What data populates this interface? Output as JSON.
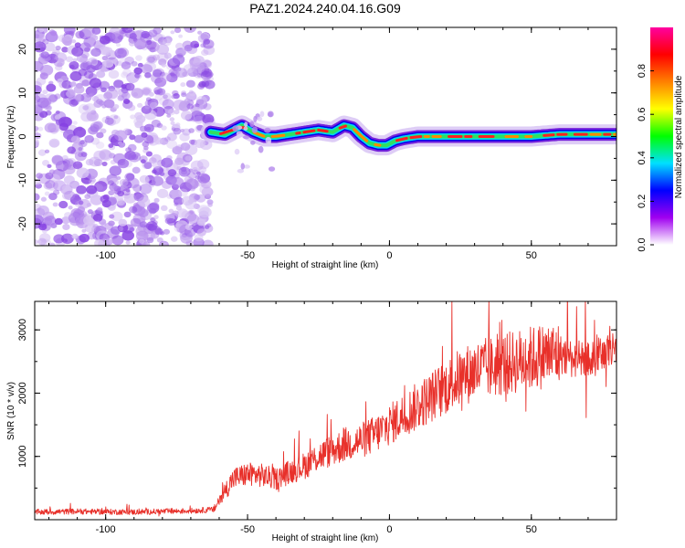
{
  "title": "PAZ1.2024.240.04.16.G09",
  "chart_data": [
    {
      "type": "heatmap",
      "xlabel": "Height of straight line (km)",
      "ylabel": "Frequency (Hz)",
      "xlim": [
        -125,
        80
      ],
      "ylim": [
        -25,
        25
      ],
      "xticks": [
        -100,
        -50,
        0,
        50
      ],
      "yticks": [
        -20,
        -10,
        0,
        10,
        20
      ],
      "colorbar": {
        "label": "Normalized spectral amplitude",
        "range": [
          0,
          1
        ],
        "ticks": [
          "0.0",
          "0.2",
          "0.4",
          "0.6",
          "0.8"
        ],
        "colormap": [
          "#ffffff",
          "#a000f0",
          "#0000ff",
          "#00e0ff",
          "#00ff00",
          "#ffff00",
          "#ff8000",
          "#ff0000",
          "#ff00a0"
        ]
      },
      "noise_region_x": [
        -125,
        -63
      ],
      "ridge": {
        "x": [
          -63,
          -58,
          -55,
          -52,
          -48,
          -44,
          -40,
          -35,
          -30,
          -25,
          -20,
          -16,
          -13,
          -10,
          -7,
          -4,
          -1,
          2,
          5,
          10,
          15,
          20,
          30,
          40,
          50,
          60,
          70,
          80
        ],
        "y": [
          1,
          0.5,
          1.5,
          2.5,
          1,
          0,
          0,
          0.5,
          1,
          1.5,
          1,
          2.5,
          2,
          0,
          -1.5,
          -2,
          -2,
          -1,
          -0.5,
          0,
          0,
          0,
          0,
          0,
          0,
          0.5,
          0.5,
          0.5
        ]
      }
    },
    {
      "type": "line",
      "xlabel": "Height of straight line (km)",
      "ylabel": "SNR (10 * v/v)",
      "xlim": [
        -125,
        80
      ],
      "ylim": [
        0,
        3450
      ],
      "xticks": [
        -100,
        -50,
        0,
        50
      ],
      "yticks": [
        1000,
        2000,
        3000
      ],
      "color": "#e8302a",
      "envelope": {
        "x": [
          -125,
          -110,
          -90,
          -70,
          -62,
          -58,
          -55,
          -50,
          -45,
          -40,
          -35,
          -30,
          -25,
          -20,
          -15,
          -10,
          -5,
          0,
          5,
          10,
          15,
          20,
          25,
          30,
          35,
          40,
          45,
          50,
          55,
          60,
          65,
          70,
          75,
          80
        ],
        "y": [
          120,
          130,
          120,
          140,
          160,
          450,
          650,
          720,
          700,
          640,
          760,
          850,
          1000,
          1100,
          1200,
          1250,
          1350,
          1500,
          1650,
          1800,
          1950,
          2100,
          2250,
          2350,
          2400,
          2450,
          2500,
          2550,
          2600,
          2620,
          2550,
          2500,
          2600,
          2650
        ]
      }
    }
  ]
}
